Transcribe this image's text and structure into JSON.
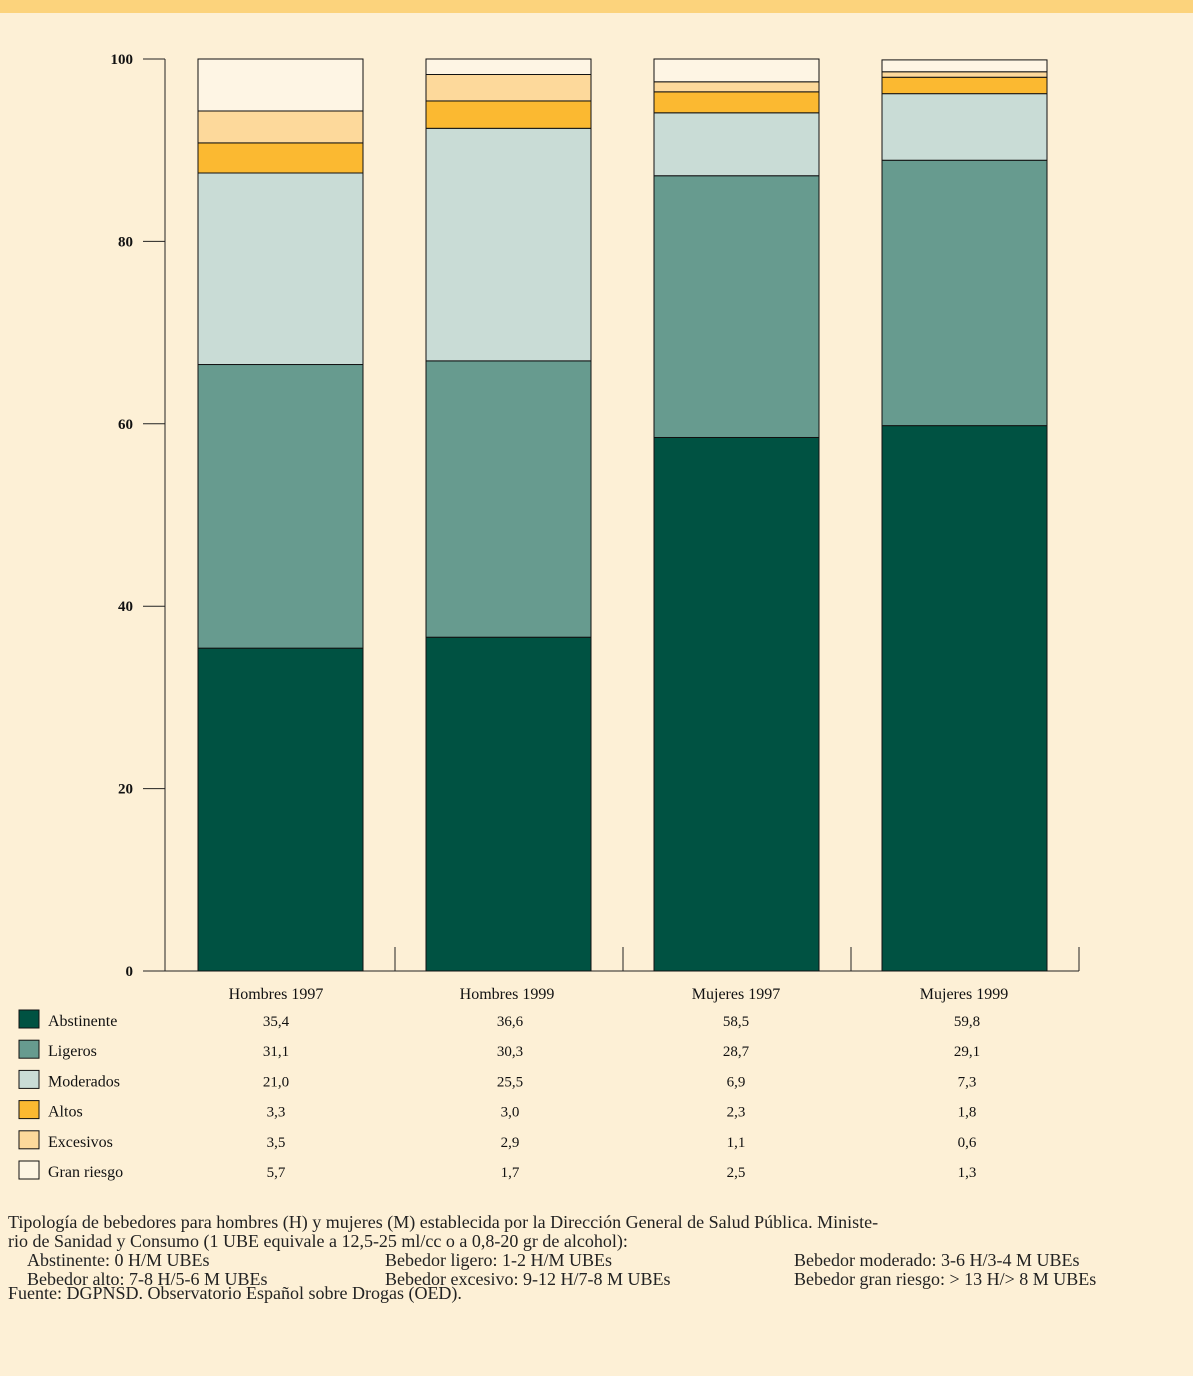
{
  "chart_data": {
    "type": "bar",
    "stacked": true,
    "categories": [
      "Hombres 1997",
      "Hombres 1999",
      "Mujeres 1997",
      "Mujeres 1999"
    ],
    "ylim": [
      0,
      100
    ],
    "yticks": [
      "0",
      "20",
      "40",
      "60",
      "80",
      "100"
    ],
    "series": [
      {
        "name": "Abstinente",
        "color": "#005242",
        "values": [
          35.4,
          36.6,
          58.5,
          59.8
        ],
        "labels": [
          "35,4",
          "36,6",
          "58,5",
          "59,8"
        ]
      },
      {
        "name": "Ligeros",
        "color": "#679b8f",
        "values": [
          31.1,
          30.3,
          28.7,
          29.1
        ],
        "labels": [
          "31,1",
          "30,3",
          "28,7",
          "29,1"
        ]
      },
      {
        "name": "Moderados",
        "color": "#c9dcd6",
        "values": [
          21.0,
          25.5,
          6.9,
          7.3
        ],
        "labels": [
          "21,0",
          "25,5",
          "6,9",
          "7,3"
        ]
      },
      {
        "name": "Altos",
        "color": "#fbb931",
        "values": [
          3.3,
          3.0,
          2.3,
          1.8
        ],
        "labels": [
          "3,3",
          "3,0",
          "2,3",
          "1,8"
        ]
      },
      {
        "name": "Excesivos",
        "color": "#fdd99b",
        "values": [
          3.5,
          2.9,
          1.1,
          0.6
        ],
        "labels": [
          "3,5",
          "2,9",
          "1,1",
          "0,6"
        ]
      },
      {
        "name": "Gran riesgo",
        "color": "#fef5e4",
        "values": [
          5.7,
          1.7,
          2.5,
          1.3
        ],
        "labels": [
          "5,7",
          "1,7",
          "2,5",
          "1,3"
        ]
      }
    ]
  },
  "notes": {
    "description_line1": "Tipología de bebedores para hombres (H) y mujeres (M) establecida por la Dirección General de Salud Pública. Ministe-",
    "description_line2": "rio de Sanidad y Consumo (1 UBE equivale a 12,5-25 ml/cc o a 0,8-20 gr de alcohol):",
    "types": [
      "Abstinente: 0 H/M UBEs",
      "Bebedor ligero: 1-2 H/M UBEs",
      "Bebedor moderado: 3-6 H/3-4 M UBEs",
      "Bebedor alto: 7-8 H/5-6 M UBEs",
      "Bebedor excesivo: 9-12 H/7-8 M UBEs",
      "Bebedor gran riesgo: > 13 H/> 8 M UBEs"
    ],
    "source": "Fuente: DGPNSD. Observatorio Español sobre Drogas (OED)."
  },
  "colors": {
    "background": "#fdf0d6",
    "top_bar": "#fcd37c"
  }
}
